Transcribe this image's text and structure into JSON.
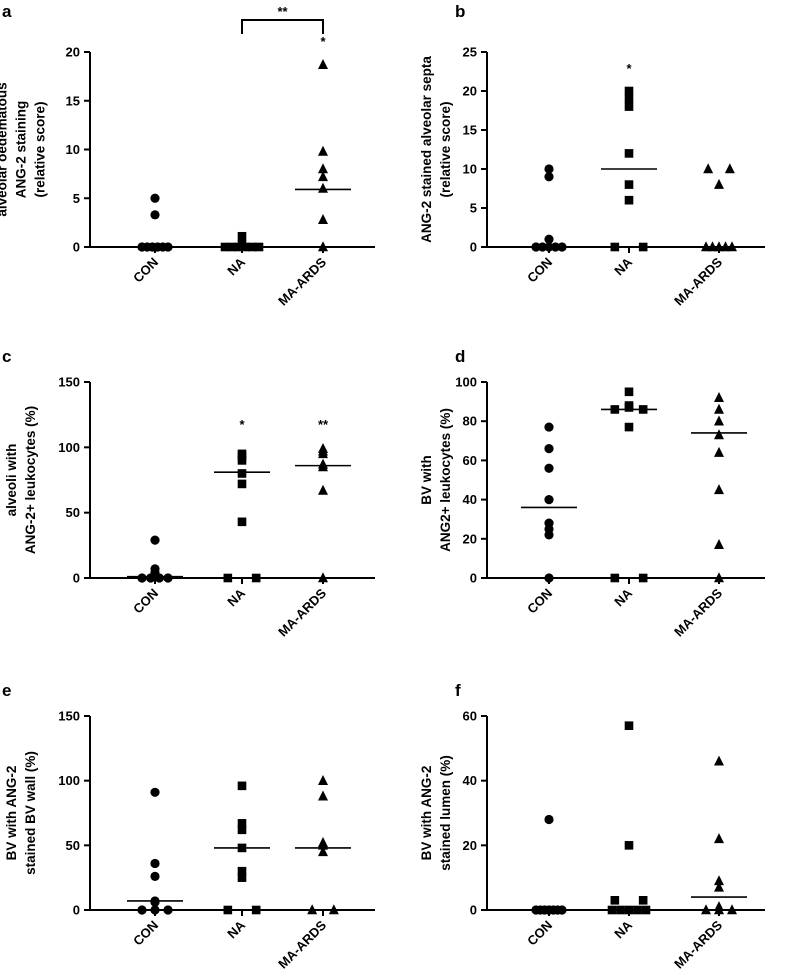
{
  "chart_data": [
    {
      "panel": "a",
      "type": "scatter",
      "ylabel_lines": [
        "alveolar oedematous",
        "ANG-2 staining",
        "(relative score)"
      ],
      "categories": [
        "CON",
        "NA",
        "MA-ARDS"
      ],
      "yticks": [
        "0",
        "5",
        "10",
        "15",
        "20"
      ],
      "ylim": [
        0,
        20
      ],
      "ytick_values": [
        0,
        5,
        10,
        15,
        20
      ],
      "series": [
        {
          "name": "CON",
          "marker": "circle",
          "values": [
            5.0,
            3.3,
            0,
            0,
            0,
            0,
            0,
            0
          ],
          "median": 0
        },
        {
          "name": "NA",
          "marker": "square",
          "values": [
            1.1,
            0.3,
            0,
            0,
            0,
            0,
            0,
            0
          ],
          "median": 0
        },
        {
          "name": "MA-ARDS",
          "marker": "triangle",
          "values": [
            18.7,
            9.8,
            8.0,
            7.2,
            6.0,
            2.8,
            0
          ],
          "median": 5.9
        }
      ],
      "annotations": [
        {
          "text": "*",
          "category": "MA-ARDS",
          "y": 20.6
        }
      ],
      "bracket": {
        "text": "**",
        "from": "NA",
        "to": "MA-ARDS"
      }
    },
    {
      "panel": "b",
      "type": "scatter",
      "ylabel_lines": [
        "ANG-2 stained alveolar septa",
        "(relative score)"
      ],
      "categories": [
        "CON",
        "NA",
        "MA-ARDS"
      ],
      "yticks": [
        "0",
        "5",
        "10",
        "15",
        "20",
        "25"
      ],
      "ylim": [
        0,
        25
      ],
      "ytick_values": [
        0,
        5,
        10,
        15,
        20,
        25
      ],
      "series": [
        {
          "name": "CON",
          "marker": "circle",
          "values": [
            10,
            9,
            1,
            0,
            0,
            0,
            0,
            0
          ],
          "median": 0
        },
        {
          "name": "NA",
          "marker": "square",
          "values": [
            20,
            19,
            18,
            12,
            8,
            6,
            0,
            0
          ],
          "median": 10
        },
        {
          "name": "MA-ARDS",
          "marker": "triangle",
          "values": [
            10,
            10,
            8,
            0,
            0,
            0,
            0,
            0
          ],
          "median": 0
        }
      ],
      "annotations": [
        {
          "text": "*",
          "category": "NA",
          "y": 22.3
        }
      ]
    },
    {
      "panel": "c",
      "type": "scatter",
      "ylabel_lines": [
        "alveoli with",
        "ANG-2+ leukocytes (%)"
      ],
      "categories": [
        "CON",
        "NA",
        "MA-ARDS"
      ],
      "yticks": [
        "0",
        "50",
        "100",
        "150"
      ],
      "ylim": [
        0,
        150
      ],
      "ytick_values": [
        0,
        50,
        100,
        150
      ],
      "series": [
        {
          "name": "CON",
          "marker": "circle",
          "values": [
            29,
            7,
            4,
            1,
            0,
            0,
            0,
            0
          ],
          "median": 1
        },
        {
          "name": "NA",
          "marker": "square",
          "values": [
            95,
            93,
            90,
            80,
            72,
            43,
            0,
            0
          ],
          "median": 81
        },
        {
          "name": "MA-ARDS",
          "marker": "triangle",
          "values": [
            99,
            97,
            95,
            87,
            85,
            67,
            0
          ],
          "median": 86
        }
      ],
      "annotations": [
        {
          "text": "*",
          "category": "NA",
          "y": 114
        },
        {
          "text": "**",
          "category": "MA-ARDS",
          "y": 114
        }
      ]
    },
    {
      "panel": "d",
      "type": "scatter",
      "ylabel_lines": [
        "BV with",
        "ANG2+ leukocytes (%)"
      ],
      "categories": [
        "CON",
        "NA",
        "MA-ARDS"
      ],
      "yticks": [
        "0",
        "20",
        "40",
        "60",
        "80",
        "100"
      ],
      "ylim": [
        0,
        100
      ],
      "ytick_values": [
        0,
        20,
        40,
        60,
        80,
        100
      ],
      "series": [
        {
          "name": "CON",
          "marker": "circle",
          "values": [
            77,
            66,
            56,
            40,
            28,
            25,
            22,
            0
          ],
          "median": 36
        },
        {
          "name": "NA",
          "marker": "square",
          "values": [
            95,
            88,
            87,
            86,
            86,
            77,
            0,
            0
          ],
          "median": 86
        },
        {
          "name": "MA-ARDS",
          "marker": "triangle",
          "values": [
            92,
            86,
            80,
            73,
            64,
            45,
            17,
            0
          ],
          "median": 74
        }
      ],
      "annotations": []
    },
    {
      "panel": "e",
      "type": "scatter",
      "ylabel_lines": [
        "BV with ANG-2",
        "stained BV wall (%)"
      ],
      "categories": [
        "CON",
        "NA",
        "MA-ARDS"
      ],
      "yticks": [
        "0",
        "50",
        "100",
        "150"
      ],
      "ylim": [
        0,
        150
      ],
      "ytick_values": [
        0,
        50,
        100,
        150
      ],
      "series": [
        {
          "name": "CON",
          "marker": "circle",
          "values": [
            91,
            36,
            26,
            7,
            6,
            0,
            0,
            0
          ],
          "median": 7
        },
        {
          "name": "NA",
          "marker": "square",
          "values": [
            96,
            67,
            62,
            48,
            30,
            25,
            0,
            0
          ],
          "median": 48
        },
        {
          "name": "MA-ARDS",
          "marker": "triangle",
          "values": [
            100,
            88,
            52,
            50,
            45,
            0,
            0
          ],
          "median": 48
        }
      ],
      "annotations": []
    },
    {
      "panel": "f",
      "type": "scatter",
      "ylabel_lines": [
        "BV with ANG-2",
        "stained lumen (%)"
      ],
      "categories": [
        "CON",
        "NA",
        "MA-ARDS"
      ],
      "yticks": [
        "0",
        "20",
        "40",
        "60"
      ],
      "ylim": [
        0,
        60
      ],
      "ytick_values": [
        0,
        20,
        40,
        60
      ],
      "series": [
        {
          "name": "CON",
          "marker": "circle",
          "values": [
            28,
            0,
            0,
            0,
            0,
            0,
            0,
            0
          ],
          "median": 0
        },
        {
          "name": "NA",
          "marker": "square",
          "values": [
            57,
            20,
            3,
            3,
            0,
            0,
            0,
            0,
            0
          ],
          "median": 0
        },
        {
          "name": "MA-ARDS",
          "marker": "triangle",
          "values": [
            46,
            22,
            9,
            7,
            0,
            0,
            0,
            1
          ],
          "median": 4
        }
      ],
      "annotations": []
    }
  ]
}
